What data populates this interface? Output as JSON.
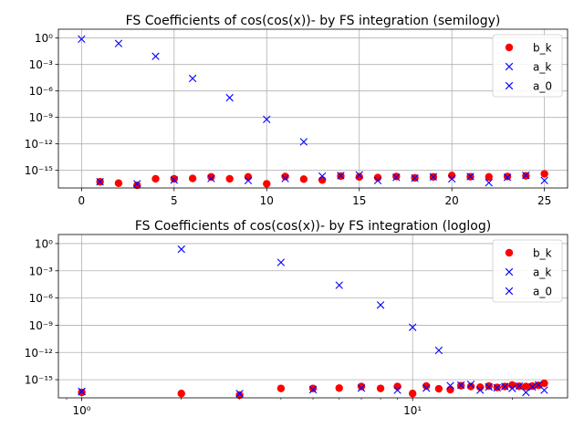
{
  "chart_data": [
    {
      "type": "scatter",
      "title": "FS Coefficients of cos(cos(x))-  by FS integration (semilogy)",
      "xscale": "linear",
      "yscale": "log",
      "xlim": [
        -1.25,
        26.25
      ],
      "ylim": [
        1e-17,
        10.0
      ],
      "x_ticks": [
        0,
        5,
        10,
        15,
        20,
        25
      ],
      "x_tick_labels": [
        "0",
        "5",
        "10",
        "15",
        "20",
        "25"
      ],
      "y_ticks": [
        1e-15,
        1e-12,
        1e-09,
        1e-06,
        0.001,
        1
      ],
      "y_tick_labels": [
        "10⁻¹⁵",
        "10⁻¹²",
        "10⁻⁹",
        "10⁻⁶",
        "10⁻³",
        "10⁰"
      ],
      "grid": true,
      "legend": "top-right",
      "series": [
        {
          "name": "b_k",
          "marker": "circle",
          "color": "#ff0000",
          "x": [
            1,
            2,
            3,
            4,
            5,
            6,
            7,
            8,
            9,
            10,
            11,
            12,
            13,
            14,
            15,
            16,
            17,
            18,
            19,
            20,
            21,
            22,
            23,
            24,
            25
          ],
          "y": [
            5e-17,
            3.5e-17,
            2e-17,
            1.1e-16,
            1.1e-16,
            1.2e-16,
            1.8e-16,
            1.1e-16,
            1.8e-16,
            3e-17,
            2e-16,
            1e-16,
            8e-17,
            2.2e-16,
            1.8e-16,
            1.5e-16,
            2e-16,
            1.4e-16,
            1.8e-16,
            2.6e-16,
            1.9e-16,
            1.8e-16,
            2e-16,
            2.4e-16,
            4e-16
          ]
        },
        {
          "name": "a_k",
          "marker": "x",
          "color": "#0000ff",
          "x": [
            1,
            2,
            3,
            4,
            5,
            6,
            7,
            8,
            9,
            10,
            11,
            12,
            13,
            14,
            15,
            16,
            17,
            18,
            19,
            20,
            21,
            22,
            23,
            24,
            25
          ],
          "y": [
            5e-17,
            0.24,
            3e-17,
            0.0084,
            8e-17,
            2.6e-05,
            1.2e-16,
            1.7e-07,
            7e-17,
            6e-10,
            1.2e-16,
            1.7e-12,
            2.2e-16,
            2.5e-16,
            3e-16,
            7e-17,
            1.6e-16,
            1.3e-16,
            1.8e-16,
            1.1e-16,
            2e-16,
            4e-17,
            1.6e-16,
            2.7e-16,
            7e-17
          ]
        },
        {
          "name": "a_0",
          "marker": "x",
          "color": "#0000ff",
          "x": [
            0
          ],
          "y": [
            0.765
          ]
        }
      ]
    },
    {
      "type": "scatter",
      "title": "FS Coefficients of cos(cos(x))-  by FS integration (loglog)",
      "xscale": "log",
      "yscale": "log",
      "xlim": [
        0.85,
        29.4
      ],
      "ylim": [
        1e-17,
        10.0
      ],
      "x_ticks": [
        1,
        10
      ],
      "x_tick_labels": [
        "10⁰",
        "10¹"
      ],
      "y_ticks": [
        1e-15,
        1e-12,
        1e-09,
        1e-06,
        0.001,
        1
      ],
      "y_tick_labels": [
        "10⁻¹⁵",
        "10⁻¹²",
        "10⁻⁹",
        "10⁻⁶",
        "10⁻³",
        "10⁰"
      ],
      "grid": true,
      "legend": "top-right",
      "series": [
        {
          "name": "b_k",
          "marker": "circle",
          "color": "#ff0000",
          "x": [
            1,
            2,
            3,
            4,
            5,
            6,
            7,
            8,
            9,
            10,
            11,
            12,
            13,
            14,
            15,
            16,
            17,
            18,
            19,
            20,
            21,
            22,
            23,
            24,
            25
          ],
          "y": [
            4e-17,
            3e-17,
            2e-17,
            1.1e-16,
            1.1e-16,
            1.2e-16,
            1.8e-16,
            1.1e-16,
            1.8e-16,
            3e-17,
            2e-16,
            1e-16,
            8e-17,
            2.2e-16,
            1.8e-16,
            1.5e-16,
            2e-16,
            1.4e-16,
            1.8e-16,
            2.6e-16,
            1.9e-16,
            1.8e-16,
            2e-16,
            2.4e-16,
            4e-16
          ]
        },
        {
          "name": "a_k",
          "marker": "x",
          "color": "#0000ff",
          "x": [
            1,
            2,
            3,
            4,
            5,
            6,
            7,
            8,
            9,
            10,
            11,
            12,
            13,
            14,
            15,
            16,
            17,
            18,
            19,
            20,
            21,
            22,
            23,
            24,
            25
          ],
          "y": [
            5e-17,
            0.24,
            3e-17,
            0.0084,
            8e-17,
            2.6e-05,
            1.2e-16,
            1.7e-07,
            7e-17,
            6e-10,
            1.2e-16,
            1.7e-12,
            2.2e-16,
            2.5e-16,
            3e-16,
            7e-17,
            1.6e-16,
            1.3e-16,
            1.8e-16,
            1.1e-16,
            2e-16,
            4e-17,
            1.6e-16,
            2.7e-16,
            7e-17
          ]
        },
        {
          "name": "a_0",
          "marker": "x",
          "color": "#0000ff",
          "x": [
            1
          ],
          "y": [
            5e-17
          ]
        }
      ]
    }
  ]
}
